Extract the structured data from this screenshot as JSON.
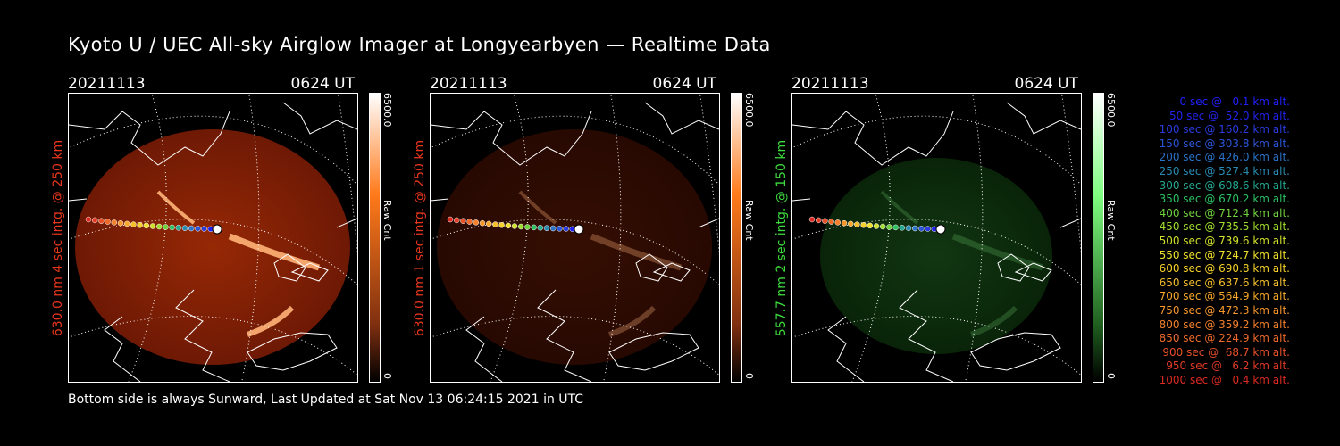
{
  "title": "Kyoto U / UEC All-sky Airglow Imager at Longyearbyen — Realtime Data",
  "footer": "Bottom side is always Sunward, Last Updated at Sat Nov 13 06:24:15 2021 in UTC",
  "chart_data": [
    {
      "type": "heatmap",
      "date": "20211113",
      "time": "0624 UT",
      "ylabel": "630.0 nm 4 sec intg. @ 250 km",
      "ylabel_color": "#e8361c",
      "colorbar": {
        "max_label": "6500.0",
        "min_label": "0",
        "unit_label": "Raw Cnt",
        "min": 0,
        "max": 6500,
        "color_high": "#ff7a1a",
        "color_low": "#000000"
      },
      "brightness": 1.0,
      "airglow_color": "red"
    },
    {
      "type": "heatmap",
      "date": "20211113",
      "time": "0624 UT",
      "ylabel": "630.0 nm 1 sec intg. @ 250 km",
      "ylabel_color": "#e8361c",
      "colorbar": {
        "max_label": "6500.0",
        "min_label": "0",
        "unit_label": "Raw Cnt",
        "min": 0,
        "max": 6500,
        "color_high": "#ff7a1a",
        "color_low": "#000000"
      },
      "brightness": 0.35,
      "airglow_color": "red"
    },
    {
      "type": "heatmap",
      "date": "20211113",
      "time": "0624 UT",
      "ylabel": "557.7 nm 2 sec intg. @ 150 km",
      "ylabel_color": "#3ddc3d",
      "colorbar": {
        "max_label": "6500.0",
        "min_label": "0",
        "unit_label": "Raw Cnt",
        "min": 0,
        "max": 6500,
        "color_high": "#7fff7f",
        "color_low": "#000000"
      },
      "brightness": 0.45,
      "airglow_color": "green"
    }
  ],
  "trajectory_legend": [
    {
      "text": "0 sec @   0.1 km alt.",
      "t": 0,
      "alt": 0.1,
      "color": "#2020ff"
    },
    {
      "text": "50 sec @  52.0 km alt.",
      "t": 50,
      "alt": 52.0,
      "color": "#2222ee"
    },
    {
      "text": "100 sec @ 160.2 km alt.",
      "t": 100,
      "alt": 160.2,
      "color": "#2a3be0"
    },
    {
      "text": "150 sec @ 303.8 km alt.",
      "t": 150,
      "alt": 303.8,
      "color": "#2a55d8"
    },
    {
      "text": "200 sec @ 426.0 km alt.",
      "t": 200,
      "alt": 426.0,
      "color": "#2a72c8"
    },
    {
      "text": "250 sec @ 527.4 km alt.",
      "t": 250,
      "alt": 527.4,
      "color": "#2a8ab0"
    },
    {
      "text": "300 sec @ 608.6 km alt.",
      "t": 300,
      "alt": 608.6,
      "color": "#23a890"
    },
    {
      "text": "350 sec @ 670.2 km alt.",
      "t": 350,
      "alt": 670.2,
      "color": "#2bc060"
    },
    {
      "text": "400 sec @ 712.4 km alt.",
      "t": 400,
      "alt": 712.4,
      "color": "#6fd23c"
    },
    {
      "text": "450 sec @ 735.5 km alt.",
      "t": 450,
      "alt": 735.5,
      "color": "#a0dc30"
    },
    {
      "text": "500 sec @ 739.6 km alt.",
      "t": 500,
      "alt": 739.6,
      "color": "#cfe02c"
    },
    {
      "text": "550 sec @ 724.7 km alt.",
      "t": 550,
      "alt": 724.7,
      "color": "#f0e02c"
    },
    {
      "text": "600 sec @ 690.8 km alt.",
      "t": 600,
      "alt": 690.8,
      "color": "#f5d22c"
    },
    {
      "text": "650 sec @ 637.6 km alt.",
      "t": 650,
      "alt": 637.6,
      "color": "#f5bf2c"
    },
    {
      "text": "700 sec @ 564.9 km alt.",
      "t": 700,
      "alt": 564.9,
      "color": "#f5a82c"
    },
    {
      "text": "750 sec @ 472.3 km alt.",
      "t": 750,
      "alt": 472.3,
      "color": "#f5962c"
    },
    {
      "text": "800 sec @ 359.2 km alt.",
      "t": 800,
      "alt": 359.2,
      "color": "#f2802c"
    },
    {
      "text": "850 sec @ 224.9 km alt.",
      "t": 850,
      "alt": 224.9,
      "color": "#ee6a2a"
    },
    {
      "text": "900 sec @  68.7 km alt.",
      "t": 900,
      "alt": 68.7,
      "color": "#e8502a"
    },
    {
      "text": "950 sec @   6.2 km alt.",
      "t": 950,
      "alt": 6.2,
      "color": "#e23a26"
    },
    {
      "text": "1000 sec @   0.4 km alt.",
      "t": 1000,
      "alt": 0.4,
      "color": "#dc2a20"
    }
  ]
}
